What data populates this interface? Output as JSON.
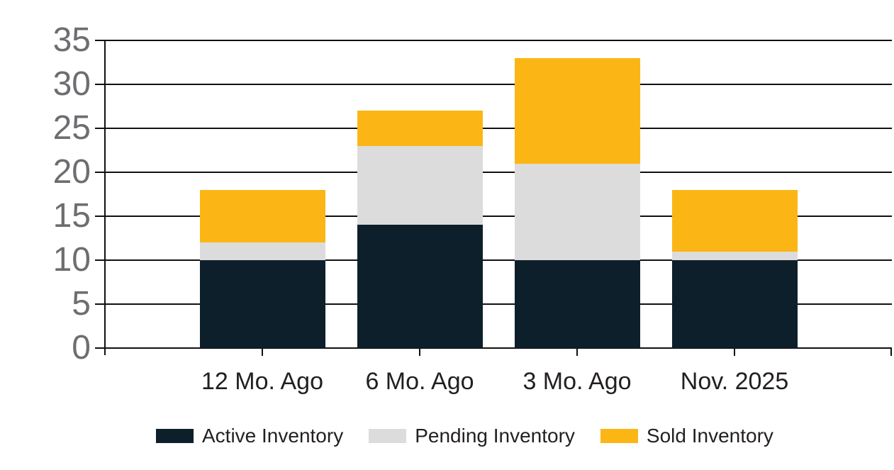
{
  "chart_data": {
    "type": "bar",
    "stacked": true,
    "title": "",
    "xlabel": "",
    "ylabel": "",
    "categories": [
      "12 Mo. Ago",
      "6 Mo. Ago",
      "3 Mo. Ago",
      "Nov. 2025"
    ],
    "series": [
      {
        "name": "Active Inventory",
        "color": "#0D1F2B",
        "values": [
          10,
          14,
          10,
          10
        ]
      },
      {
        "name": "Pending Inventory",
        "color": "#DCDCDC",
        "values": [
          2,
          9,
          11,
          1
        ]
      },
      {
        "name": "Sold Inventory",
        "color": "#FBB616",
        "values": [
          6,
          4,
          12,
          7
        ]
      }
    ],
    "stack_totals": [
      18,
      27,
      33,
      18
    ],
    "y_axis": {
      "min": 0,
      "max": 35,
      "step": 5,
      "tick_labels": [
        "0",
        "5",
        "10",
        "15",
        "20",
        "25",
        "30",
        "35"
      ]
    },
    "legend": {
      "position": "bottom",
      "entries": [
        "Active Inventory",
        "Pending Inventory",
        "Sold Inventory"
      ]
    },
    "grid": true
  },
  "colors": {
    "background": "#FFFFFF",
    "grid_line": "#111111",
    "axis_line": "#111111",
    "y_tick_label": "#6D6E71",
    "x_tick_label": "#231F20",
    "legend_label": "#231F20"
  }
}
